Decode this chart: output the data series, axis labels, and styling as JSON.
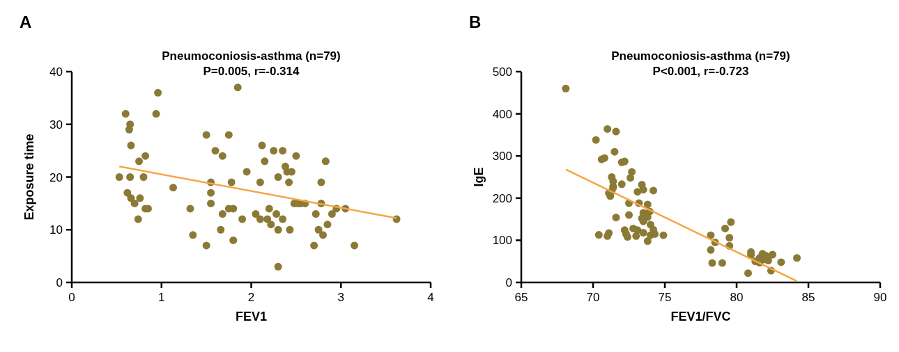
{
  "chart_data": [
    {
      "type": "scatter",
      "title": "Pneumoconiosis-asthma (n=79)",
      "subtitle": "P=0.005, r=-0.314",
      "xlabel": "FEV1",
      "ylabel": "Exposure time",
      "annotations": [
        "A"
      ],
      "xlim": [
        0,
        4
      ],
      "xticks": [
        0,
        1,
        2,
        3,
        4
      ],
      "ylim": [
        0,
        40
      ],
      "yticks": [
        0,
        10,
        20,
        30,
        40
      ],
      "grid": false,
      "series": [
        {
          "marker": "circle",
          "color": "#8b7a35",
          "x": [
            0.53,
            0.6,
            0.62,
            0.64,
            0.65,
            0.66,
            0.65,
            0.66,
            0.7,
            0.75,
            0.76,
            0.74,
            0.8,
            0.82,
            0.82,
            0.85,
            0.94,
            0.96,
            1.13,
            1.32,
            1.35,
            1.5,
            1.5,
            1.55,
            1.55,
            1.55,
            1.6,
            1.66,
            1.68,
            1.68,
            1.75,
            1.75,
            1.78,
            1.8,
            1.8,
            1.85,
            1.9,
            1.95,
            2.05,
            2.1,
            2.12,
            2.1,
            2.15,
            2.18,
            2.2,
            2.22,
            2.25,
            2.28,
            2.3,
            2.3,
            2.3,
            2.35,
            2.35,
            2.38,
            2.4,
            2.42,
            2.43,
            2.45,
            2.5,
            2.48,
            2.52,
            2.55,
            2.6,
            2.7,
            2.72,
            2.75,
            2.78,
            2.78,
            2.8,
            2.83,
            2.85,
            2.9,
            2.95,
            3.05,
            3.15,
            3.62
          ],
          "values": [
            20,
            32,
            17,
            29,
            30,
            26,
            20,
            16,
            15,
            23,
            16,
            12,
            20,
            24,
            14,
            14,
            32,
            36,
            18,
            14,
            9,
            28,
            7,
            19,
            17,
            15,
            25,
            10,
            24,
            13,
            28,
            14,
            19,
            14,
            8,
            37,
            12,
            21,
            13,
            12,
            26,
            19,
            23,
            12,
            14,
            11,
            25,
            13,
            20,
            10,
            3,
            25,
            12,
            22,
            21,
            19,
            10,
            21,
            24,
            15,
            15,
            15,
            15,
            7,
            13,
            10,
            19,
            15,
            9,
            23,
            11,
            13,
            14,
            14,
            7,
            12
          ]
        },
        {
          "type": "line",
          "color": "#f7a545",
          "x": [
            0.53,
            3.62
          ],
          "values": [
            22,
            12.2
          ]
        }
      ]
    },
    {
      "type": "scatter",
      "title": "Pneumoconiosis-asthma (n=79)",
      "subtitle": "P<0.001, r=-0.723",
      "xlabel": "FEV1/FVC",
      "ylabel": "IgE",
      "annotations": [
        "B"
      ],
      "xlim": [
        65,
        90
      ],
      "xticks": [
        65,
        70,
        75,
        80,
        85,
        90
      ],
      "ylim": [
        0,
        500
      ],
      "yticks": [
        0,
        100,
        200,
        300,
        400,
        500
      ],
      "grid": false,
      "series": [
        {
          "marker": "circle",
          "color": "#8b7a35",
          "x": [
            68.1,
            70.2,
            70.6,
            70.8,
            71,
            71.6,
            70.4,
            71,
            71.1,
            71.1,
            71.2,
            71.3,
            71.3,
            71.4,
            71.4,
            71.4,
            71.5,
            71.6,
            72,
            72.2,
            72,
            72.2,
            72.3,
            72.4,
            72.5,
            72.5,
            72.6,
            72.7,
            72.8,
            73,
            73.1,
            73.1,
            73.2,
            73.5,
            73.4,
            73.5,
            73.4,
            73.5,
            73.95,
            73.5,
            73.8,
            73.8,
            73.8,
            74,
            74,
            74.2,
            74.2,
            74.3,
            74.9,
            78.2,
            78.2,
            78.3,
            78.5,
            79.2,
            79.6,
            79.5,
            79.5,
            79,
            80.8,
            81,
            81,
            81.3,
            81.6,
            81.6,
            81.8,
            81.8,
            82,
            82.2,
            82.2,
            82.5,
            82.4,
            83.1,
            84.2
          ],
          "values": [
            460,
            338,
            292,
            295,
            364,
            358,
            113,
            110,
            117,
            212,
            205,
            216,
            250,
            240,
            228,
            225,
            310,
            154,
            285,
            287,
            233,
            124,
            115,
            108,
            160,
            188,
            248,
            262,
            128,
            110,
            124,
            215,
            188,
            220,
            232,
            165,
            152,
            145,
            168,
            118,
            155,
            98,
            185,
            112,
            137,
            218,
            125,
            115,
            112,
            112,
            77,
            46,
            95,
            128,
            143,
            106,
            87,
            46,
            22,
            65,
            72,
            50,
            47,
            58,
            54,
            68,
            64,
            60,
            52,
            66,
            28,
            48,
            58
          ]
        },
        {
          "type": "line",
          "color": "#f7a545",
          "x": [
            68.1,
            84.2
          ],
          "values": [
            268,
            3
          ]
        }
      ]
    }
  ]
}
